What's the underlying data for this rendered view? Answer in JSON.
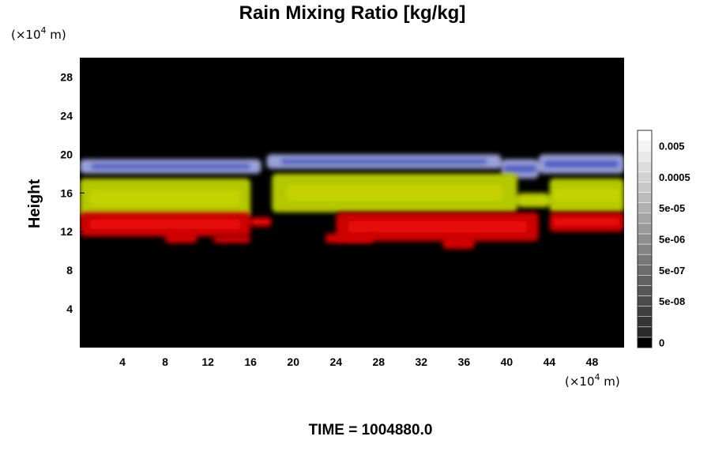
{
  "chart_data": {
    "type": "heatmap",
    "title": "Rain Mixing Ratio [kg/kg]",
    "ylabel": "Height",
    "y_unit": {
      "prefix": "(×10",
      "exp": "4",
      "suffix": " m)"
    },
    "x_unit": {
      "prefix": "(×10",
      "exp": "4",
      "suffix": " m)"
    },
    "xlim": [
      0,
      51
    ],
    "ylim": [
      0,
      30
    ],
    "x_ticks": [
      4,
      8,
      12,
      16,
      20,
      24,
      28,
      32,
      36,
      40,
      44,
      48
    ],
    "y_ticks": [
      4,
      8,
      12,
      16,
      20,
      24,
      28
    ],
    "background_color": "#000000",
    "layers": [
      {
        "name": "upper",
        "color": "#9aa0d8",
        "core_color": "#1428b4",
        "segments": [
          [
            0,
            17,
            18,
            19.5
          ],
          [
            17.5,
            39.5,
            18.5,
            20
          ],
          [
            39.5,
            43,
            17.5,
            19.5
          ],
          [
            43,
            51,
            18,
            20
          ]
        ]
      },
      {
        "name": "middle",
        "color": "#b4c800",
        "core_color": "#d2dc00",
        "segments": [
          [
            0,
            16,
            13.5,
            17.5
          ],
          [
            18,
            41,
            14,
            18
          ],
          [
            41,
            44,
            14.5,
            16
          ],
          [
            44,
            51,
            14,
            17.5
          ]
        ]
      },
      {
        "name": "lower",
        "color": "#cc0000",
        "core_color": "#ff1010",
        "segments": [
          [
            0,
            16,
            11.5,
            14
          ],
          [
            16,
            18,
            12.5,
            13.5
          ],
          [
            24,
            43,
            11,
            14
          ],
          [
            44,
            51,
            12,
            14
          ]
        ]
      }
    ],
    "patches": [
      [
        8,
        11,
        10.8,
        12
      ],
      [
        12.5,
        16,
        10.8,
        11.6
      ],
      [
        23,
        27.5,
        10.8,
        11.8
      ],
      [
        34,
        37,
        10.2,
        11.5
      ]
    ],
    "colorbar": {
      "labels": [
        "0.005",
        "0.0005",
        "5e-05",
        "5e-06",
        "5e-07",
        "5e-08",
        "0"
      ],
      "label_levels": [
        19,
        16,
        13,
        10,
        7,
        4,
        0
      ],
      "levels": 21,
      "color_bottom": "#000000",
      "color_top": "#ffffff"
    }
  },
  "time_label": "TIME = 1004880.0"
}
